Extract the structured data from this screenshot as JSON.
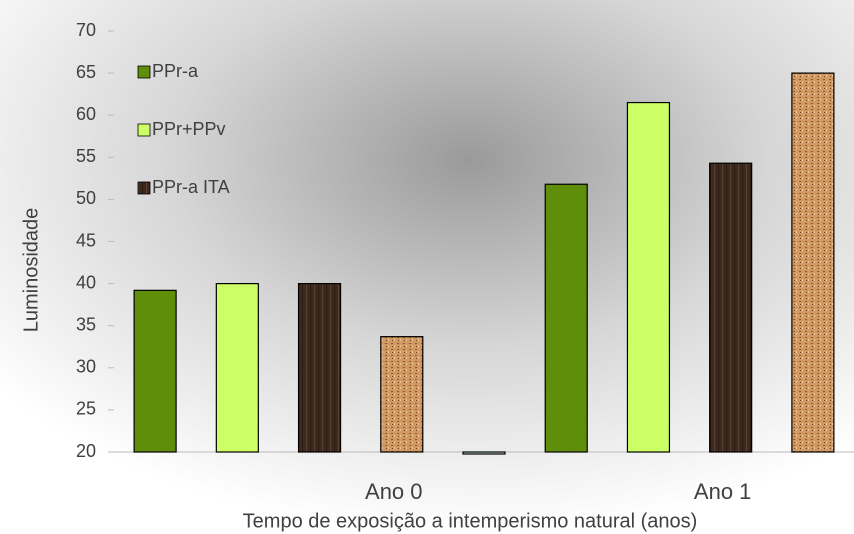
{
  "chart_data": {
    "type": "bar",
    "y_label": "Luminosidade",
    "x_label": "Tempo de exposição a intemperismo natural (anos)",
    "categories": [
      null,
      null,
      null,
      "Ano 0",
      null,
      null,
      null,
      "Ano 1",
      null
    ],
    "series": [
      {
        "name": "PPr-a",
        "color": "#5f8f0a",
        "values": [
          39.2,
          null,
          null,
          null,
          null,
          51.8,
          null,
          null,
          null
        ]
      },
      {
        "name": "PPr+PPv",
        "color": "#ccff66",
        "values": [
          null,
          40,
          null,
          null,
          null,
          null,
          61.5,
          null,
          null
        ]
      },
      {
        "name": "PPr-a ITA",
        "color": "#3d2a1e",
        "values": [
          null,
          null,
          40,
          null,
          null,
          null,
          null,
          54.3,
          null
        ]
      },
      {
        "color": "#c8935a",
        "values": [
          null,
          null,
          null,
          33.7,
          null,
          null,
          null,
          null,
          65
        ]
      },
      {
        "color": "#cfe6de",
        "values": [
          null,
          null,
          null,
          null,
          20,
          null,
          null,
          null,
          null
        ]
      }
    ],
    "ylim": [
      20,
      70
    ],
    "yticks": [
      20,
      25,
      30,
      35,
      40,
      45,
      50,
      55,
      60,
      65,
      70
    ]
  }
}
